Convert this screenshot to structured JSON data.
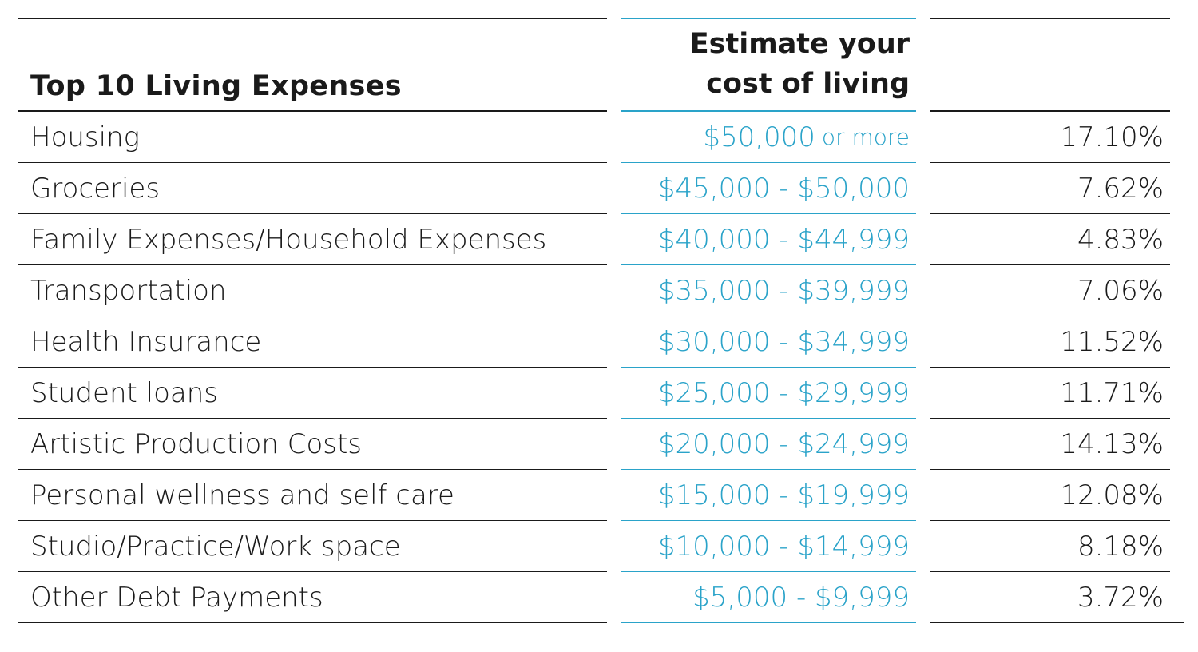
{
  "header": {
    "title": "Top 10 Living Expenses",
    "range_line1": "Estimate your",
    "range_line2": "cost of living",
    "pct_title": ""
  },
  "colors": {
    "accent": "#2aa3c9",
    "text": "#1a1a1a"
  },
  "rows": [
    {
      "expense": "Housing",
      "range_main": "$50,000",
      "range_suffix": "or more",
      "percent": "17.10%"
    },
    {
      "expense": "Groceries",
      "range_main": "$45,000 - $50,000",
      "range_suffix": "",
      "percent": "7.62%"
    },
    {
      "expense": "Family Expenses/Household Expenses",
      "range_main": "$40,000 - $44,999",
      "range_suffix": "",
      "percent": "4.83%"
    },
    {
      "expense": "Transportation",
      "range_main": "$35,000 - $39,999",
      "range_suffix": "",
      "percent": "7.06%"
    },
    {
      "expense": "Health Insurance",
      "range_main": "$30,000 - $34,999",
      "range_suffix": "",
      "percent": "11.52%"
    },
    {
      "expense": "Student loans",
      "range_main": "$25,000 - $29,999",
      "range_suffix": "",
      "percent": "11.71%"
    },
    {
      "expense": "Artistic Production Costs",
      "range_main": "$20,000 - $24,999",
      "range_suffix": "",
      "percent": "14.13%"
    },
    {
      "expense": "Personal wellness and self care",
      "range_main": "$15,000 - $19,999",
      "range_suffix": "",
      "percent": "12.08%"
    },
    {
      "expense": "Studio/Practice/Work space",
      "range_main": "$10,000 - $14,999",
      "range_suffix": "",
      "percent": "8.18%"
    },
    {
      "expense": "Other Debt Payments",
      "range_main": "$5,000 - $9,999",
      "range_suffix": "",
      "percent": "3.72%"
    }
  ]
}
